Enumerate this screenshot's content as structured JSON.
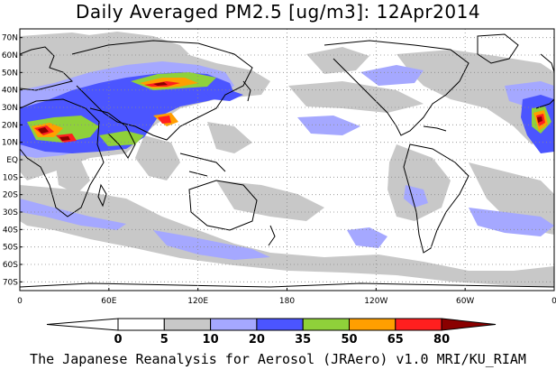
{
  "title": "Daily Averaged PM2.5 [ug/m3]: 12Apr2014",
  "footer": "The Japanese Reanalysis for Aerosol (JRAero) v1.0 MRI/KU_RIAM",
  "lat_labels": [
    "70N",
    "60N",
    "50N",
    "40N",
    "30N",
    "20N",
    "10N",
    "EQ",
    "10S",
    "20S",
    "30S",
    "40S",
    "50S",
    "60S",
    "70S"
  ],
  "lon_labels": [
    "0",
    "60E",
    "120E",
    "180",
    "120W",
    "60W",
    "0"
  ],
  "colorbar": {
    "ticks": [
      "0",
      "5",
      "10",
      "20",
      "35",
      "50",
      "65",
      "80"
    ],
    "colors": [
      "#ffffff",
      "#c8c8c8",
      "#a5a8ff",
      "#4b55ff",
      "#8fd13a",
      "#ff9f00",
      "#ff1f1f",
      "#8a0000"
    ]
  },
  "legend_levels": [
    {
      "range": "0-5",
      "color": "#ffffff"
    },
    {
      "range": "5-10",
      "color": "#c8c8c8"
    },
    {
      "range": "10-20",
      "color": "#a5a8ff"
    },
    {
      "range": "20-35",
      "color": "#4b55ff"
    },
    {
      "range": "35-50",
      "color": "#8fd13a"
    },
    {
      "range": "50-65",
      "color": "#ff9f00"
    },
    {
      "range": "65-80",
      "color": "#ff1f1f"
    },
    {
      "range": ">80",
      "color": "#8a0000"
    }
  ]
}
